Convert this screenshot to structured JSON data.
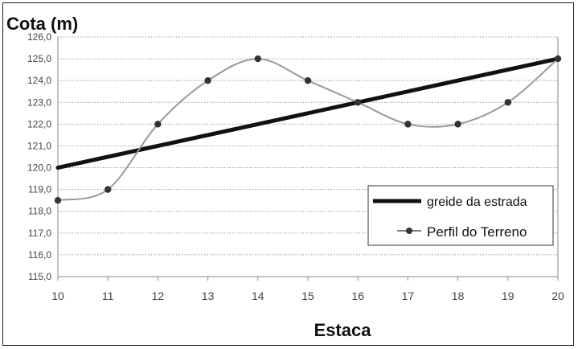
{
  "chart_data": {
    "type": "line",
    "ylabel": "Cota (m)",
    "xlabel": "Estaca",
    "x": [
      10,
      11,
      12,
      13,
      14,
      15,
      16,
      17,
      18,
      19,
      20
    ],
    "x_tick_labels": [
      "10",
      "11",
      "12",
      "13",
      "14",
      "15",
      "16",
      "17",
      "18",
      "19",
      "20"
    ],
    "y_tick_labels": [
      "115,0",
      "116,0",
      "117,0",
      "118,0",
      "119,0",
      "120,0",
      "121,0",
      "122,0",
      "123,0",
      "124,0",
      "125,0",
      "126,0"
    ],
    "xlim": [
      10,
      20
    ],
    "ylim": [
      115,
      126
    ],
    "grid": "horizontal dotted",
    "legend_position": "lower-right",
    "series": [
      {
        "name": "greide da estrada",
        "style": "thick-line",
        "color": "#111111",
        "x": [
          10,
          20
        ],
        "values": [
          120.0,
          125.0
        ]
      },
      {
        "name": "Perfil do Terreno",
        "style": "smooth-line-markers",
        "color": "#999999",
        "marker_color": "#333333",
        "x": [
          10,
          11,
          12,
          13,
          14,
          15,
          16,
          17,
          18,
          19,
          20
        ],
        "values": [
          118.5,
          119.0,
          122.0,
          124.0,
          125.0,
          124.0,
          123.0,
          122.0,
          122.0,
          123.0,
          125.0
        ]
      }
    ]
  }
}
